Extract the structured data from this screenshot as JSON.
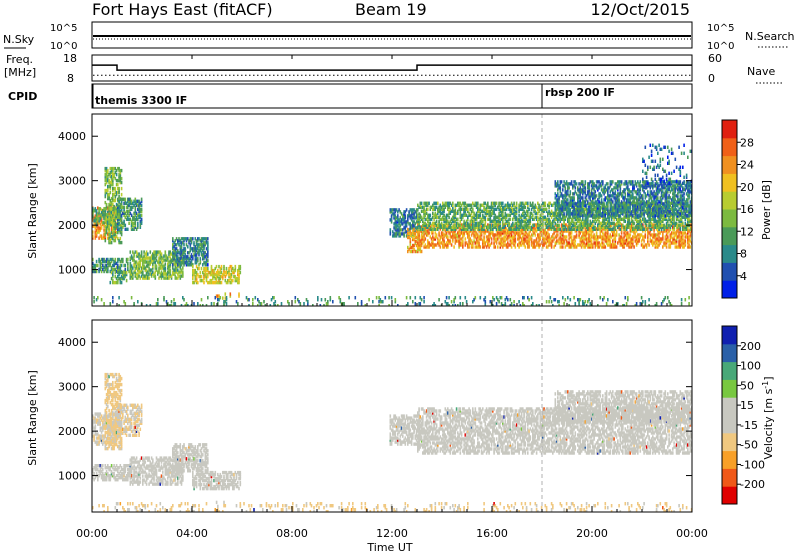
{
  "header": {
    "site": "Fort Hays East (fitACF)",
    "beam": "Beam 19",
    "date": "12/Oct/2015"
  },
  "noise_panel": {
    "left_label": "N.Sky",
    "left_ticks": [
      "10^5",
      "10^0"
    ],
    "right_ticks": [
      "10^5",
      "10^0"
    ],
    "right_label": "N.Search"
  },
  "freq_panel": {
    "label_line1": "Freq.",
    "label_line2": "[MHz]",
    "left_ticks": [
      "18",
      "8"
    ],
    "right_ticks": [
      "60",
      "0"
    ],
    "right_label": "Nave",
    "freq_steps": [
      {
        "t0": 0.0,
        "t1": 1.0,
        "f": 14.2
      },
      {
        "t0": 1.0,
        "t1": 13.0,
        "f": 12.1
      },
      {
        "t0": 13.0,
        "t1": 24.0,
        "f": 14.2
      }
    ],
    "nave_level": 12
  },
  "cpid_panel": {
    "label": "CPID",
    "programs": [
      {
        "name": "themis 3300 IF",
        "start": 0.0
      },
      {
        "name": "rbsp 200 IF",
        "start": 18.0
      }
    ]
  },
  "chart_data": [
    {
      "type": "heatmap",
      "title": "Power",
      "ylabel": "Slant Range [km]",
      "yticks": [
        "4000",
        "3000",
        "2000",
        "1000"
      ],
      "ylim": [
        180,
        4500
      ],
      "xlim": [
        0,
        24
      ],
      "colorbar": {
        "label": "Power [dB]",
        "ticks": [
          "28",
          "24",
          "20",
          "16",
          "12",
          "8",
          "4"
        ],
        "range": [
          0,
          32
        ],
        "colors": [
          "#0020e8",
          "#2050b0",
          "#2a8a8a",
          "#4a9a58",
          "#7cba40",
          "#b8cc30",
          "#f0c020",
          "#f09020",
          "#f06018",
          "#e02010"
        ]
      },
      "regions": [
        {
          "t0": 0.0,
          "t1": 1.0,
          "r0": 1700,
          "r1": 2400,
          "p": 24
        },
        {
          "t0": 0.0,
          "t1": 1.0,
          "r0": 2000,
          "r1": 2400,
          "p": 12
        },
        {
          "t0": 0.5,
          "t1": 1.2,
          "r0": 1600,
          "r1": 3300,
          "p": 14
        },
        {
          "t0": 1.0,
          "t1": 2.0,
          "r0": 1900,
          "r1": 2600,
          "p": 10
        },
        {
          "t0": 0.0,
          "t1": 1.6,
          "r0": 950,
          "r1": 1250,
          "p": 10
        },
        {
          "t0": 0.7,
          "t1": 1.4,
          "r0": 700,
          "r1": 950,
          "p": 12
        },
        {
          "t0": 1.5,
          "t1": 3.6,
          "r0": 800,
          "r1": 1400,
          "p": 14
        },
        {
          "t0": 3.2,
          "t1": 4.6,
          "r0": 1100,
          "r1": 1700,
          "p": 8
        },
        {
          "t0": 4.0,
          "t1": 5.9,
          "r0": 700,
          "r1": 1100,
          "p": 18
        },
        {
          "t0": 4.9,
          "t1": 5.9,
          "r0": 350,
          "r1": 450,
          "p": 22
        },
        {
          "t0": 11.9,
          "t1": 13.1,
          "r0": 1750,
          "r1": 2350,
          "p": 8
        },
        {
          "t0": 12.6,
          "t1": 13.2,
          "r0": 1400,
          "r1": 1900,
          "p": 22
        },
        {
          "t0": 13.0,
          "t1": 24.0,
          "r0": 1500,
          "r1": 2000,
          "p": 24
        },
        {
          "t0": 13.0,
          "t1": 24.0,
          "r0": 1900,
          "r1": 2500,
          "p": 12
        },
        {
          "t0": 18.5,
          "t1": 24.0,
          "r0": 2200,
          "r1": 3000,
          "p": 8
        },
        {
          "t0": 22.0,
          "t1": 24.0,
          "r0": 2800,
          "r1": 3800,
          "p": 6
        },
        {
          "t0": 0.0,
          "t1": 24.0,
          "r0": 180,
          "r1": 380,
          "p": 10
        }
      ]
    },
    {
      "type": "heatmap",
      "title": "Velocity",
      "ylabel": "Slant Range [km]",
      "yticks": [
        "4000",
        "3000",
        "2000",
        "1000"
      ],
      "ylim": [
        180,
        4500
      ],
      "xlim": [
        0,
        24
      ],
      "colorbar": {
        "label": "Velocity [m s^-1]",
        "ticks": [
          "200",
          "100",
          "50",
          "15",
          "-15",
          "-50",
          "-100",
          "-200"
        ],
        "range": [
          -250,
          250
        ],
        "colors": [
          "#e00000",
          "#f05818",
          "#f8a028",
          "#f0c880",
          "#c8c8c0",
          "#c8c8c0",
          "#78c840",
          "#48a878",
          "#2a60a8",
          "#1020b0"
        ]
      },
      "regions": [
        {
          "t0": 0.0,
          "t1": 1.0,
          "r0": 1700,
          "r1": 2400,
          "v": -40
        },
        {
          "t0": 0.5,
          "t1": 1.2,
          "r0": 1600,
          "r1": 3300,
          "v": -60
        },
        {
          "t0": 1.0,
          "t1": 2.0,
          "r0": 1900,
          "r1": 2600,
          "v": -50
        },
        {
          "t0": 0.0,
          "t1": 1.6,
          "r0": 900,
          "r1": 1250,
          "v": 0
        },
        {
          "t0": 1.5,
          "t1": 3.6,
          "r0": 800,
          "r1": 1400,
          "v": 0
        },
        {
          "t0": 3.2,
          "t1": 4.6,
          "r0": 1100,
          "r1": 1700,
          "v": -5
        },
        {
          "t0": 4.0,
          "t1": 5.9,
          "r0": 700,
          "r1": 1100,
          "v": 5
        },
        {
          "t0": 4.9,
          "t1": 5.9,
          "r0": 300,
          "r1": 450,
          "v": 30
        },
        {
          "t0": 11.9,
          "t1": 13.1,
          "r0": 1700,
          "r1": 2350,
          "v": 25
        },
        {
          "t0": 13.0,
          "t1": 24.0,
          "r0": 1500,
          "r1": 2500,
          "v": 0
        },
        {
          "t0": 18.5,
          "t1": 24.0,
          "r0": 2200,
          "r1": 2900,
          "v": 5
        },
        {
          "t0": 0.0,
          "t1": 24.0,
          "r0": 180,
          "r1": 380,
          "v": -60
        }
      ]
    }
  ],
  "xaxis": {
    "ticks": [
      "00:00",
      "04:00",
      "08:00",
      "12:00",
      "16:00",
      "20:00",
      "00:00"
    ],
    "label": "Time UT"
  }
}
